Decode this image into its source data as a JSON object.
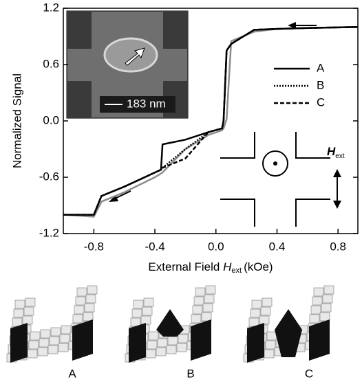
{
  "chart_data": {
    "type": "line",
    "y_label": "Normalized Signal",
    "x_label_text": "External Field",
    "x_label_symbol": "H",
    "x_label_subscript": "ext",
    "x_label_unit": "(kOe)",
    "x": [
      -1.0,
      -0.8,
      -0.75,
      -0.6,
      -0.4,
      -0.36,
      -0.35,
      -0.2,
      -0.05,
      0.04,
      0.05,
      0.07,
      0.1,
      0.25,
      0.4,
      0.6,
      0.93
    ],
    "series": [
      {
        "name": "A",
        "color": "#000000",
        "dash": "solid",
        "values": [
          -1,
          -1,
          -0.8,
          -0.7,
          -0.55,
          -0.52,
          -0.25,
          -0.2,
          -0.12,
          -0.08,
          0.0,
          0.75,
          0.82,
          0.97,
          0.98,
          0.99,
          1.0
        ]
      },
      {
        "name": "B",
        "color": "#000000",
        "dash": "dotted",
        "values": [
          -1,
          -1,
          -0.8,
          -0.7,
          -0.55,
          -0.52,
          -0.5,
          -0.3,
          -0.12,
          -0.08,
          0.0,
          0.75,
          0.82,
          0.97,
          0.98,
          0.99,
          1.0
        ]
      },
      {
        "name": "C",
        "color": "#000000",
        "dash": "dashed",
        "values": [
          -1,
          -1,
          -0.8,
          -0.7,
          -0.55,
          -0.52,
          -0.5,
          -0.4,
          -0.12,
          -0.08,
          0.0,
          0.75,
          0.82,
          0.97,
          0.98,
          0.99,
          1.0
        ]
      },
      {
        "color": "#8c8c8c",
        "dash": "solid",
        "values": [
          -1,
          -1.02,
          -0.86,
          -0.76,
          -0.6,
          -0.56,
          -0.55,
          -0.3,
          -0.15,
          -0.1,
          -0.08,
          0.02,
          0.85,
          0.95,
          0.98,
          0.99,
          1.0
        ]
      }
    ],
    "xlim": [
      -1.0,
      0.93
    ],
    "ylim": [
      -1.2,
      1.2
    ],
    "xticks": [
      -0.8,
      -0.4,
      {
        "value": 0,
        "label": "0.0"
      },
      0.4,
      0.8
    ],
    "yticks": [
      -1.2,
      -0.6,
      {
        "value": 0,
        "label": "0.0"
      },
      0.6,
      1.2
    ],
    "grid": false,
    "legend": "upper right",
    "inset_scale": "183 nm",
    "field_symbol": "H",
    "field_subscript": "ext"
  },
  "panels": [
    {
      "label": "A"
    },
    {
      "label": "B"
    },
    {
      "label": "C"
    }
  ]
}
